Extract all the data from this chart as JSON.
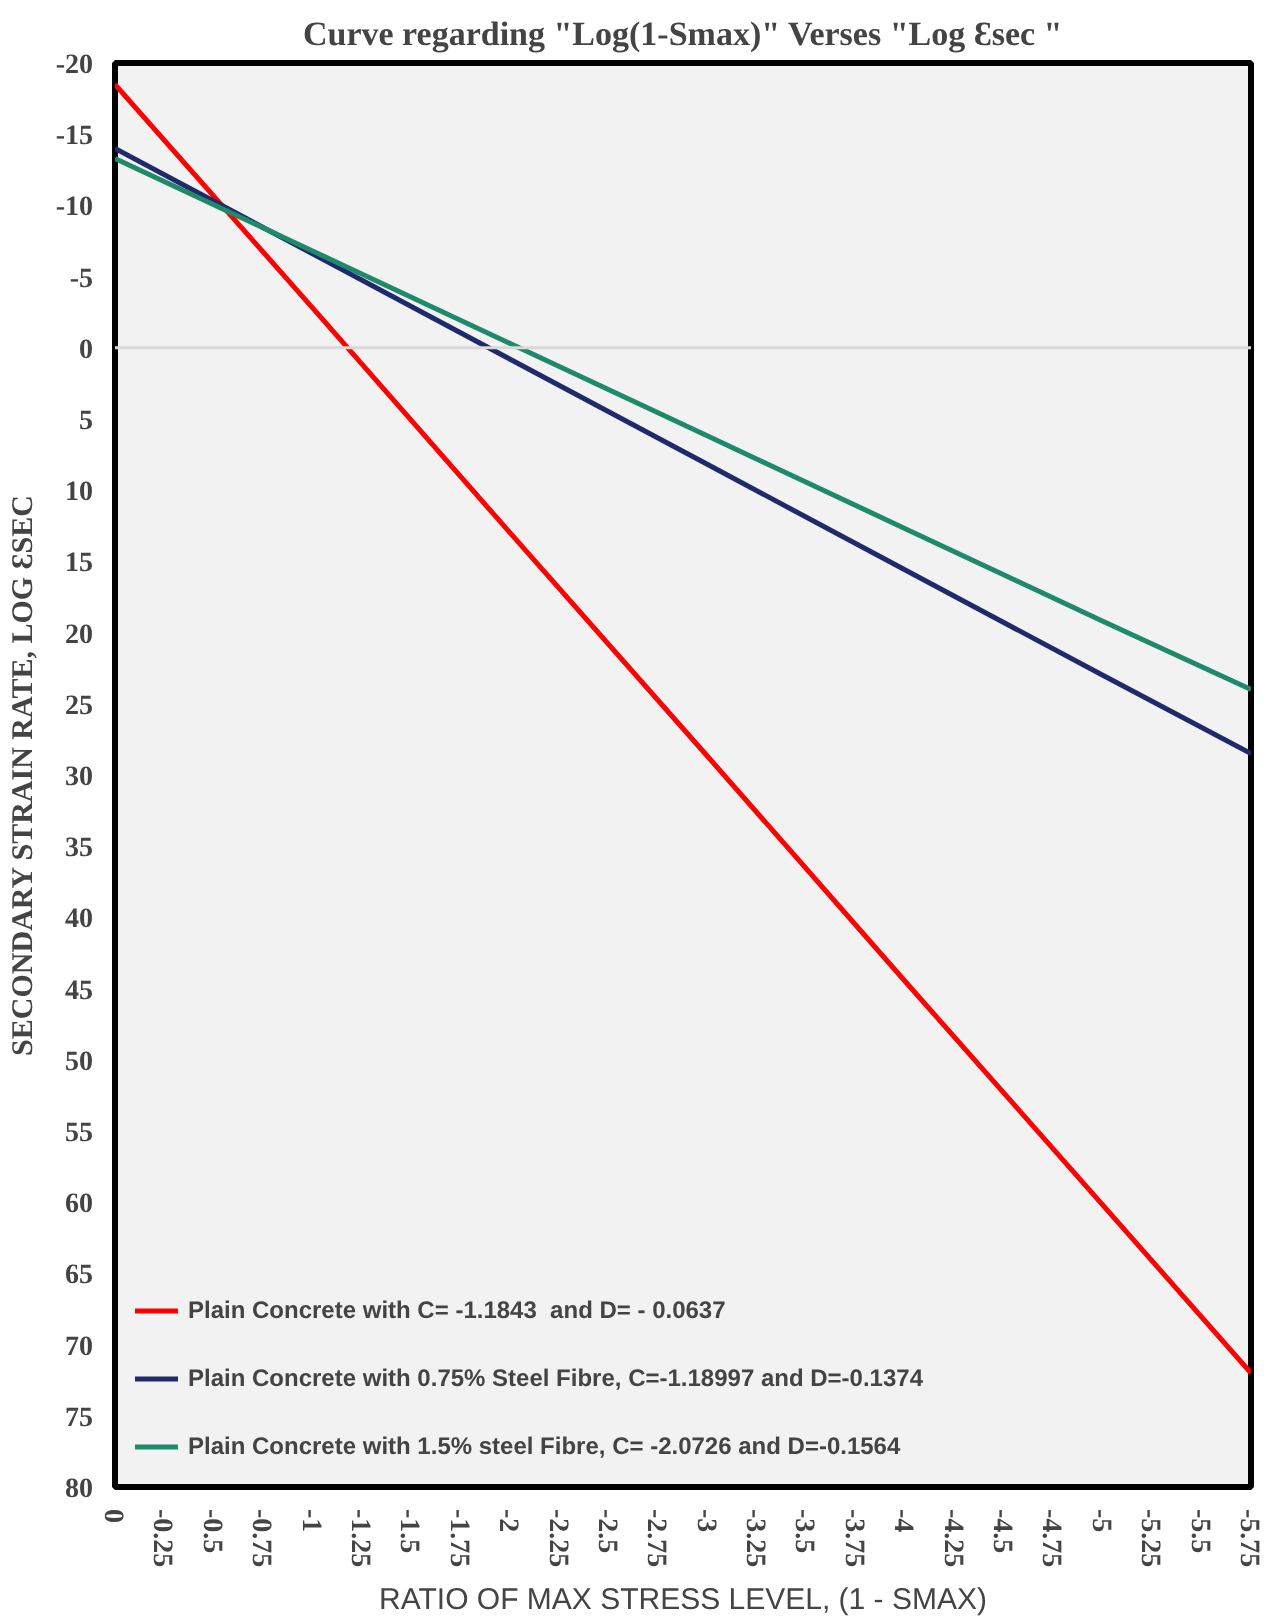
{
  "chart_data": {
    "type": "line",
    "title": "Curve regarding \"Log(1-Smax)\" Verses \"Log Ɛsec \"",
    "xlabel": "RATIO OF MAX STRESS LEVEL, (1 - SMAX)",
    "ylabel": "SECONDARY STRAIN RATE, LOG ƐSEC",
    "x": [
      0,
      -1,
      -2,
      -3,
      -4,
      -5,
      -5.75
    ],
    "series": [
      {
        "name": "Plain Concrete with C= -1.1843  and D= - 0.0637",
        "color": "#ff0000",
        "values": [
          -18.5,
          -2.8,
          13,
          28.7,
          44.5,
          60.2,
          72
        ]
      },
      {
        "name": "Plain Concrete with 0.75% Steel Fibre, C=-1.18997 and D=-0.1374",
        "color": "#1f2a6b",
        "values": [
          -14,
          -6.6,
          0.8,
          8.2,
          15.6,
          23,
          28.5
        ]
      },
      {
        "name": "Plain Concrete with 1.5% steel Fibre, C= -2.0726 and D=-0.1564",
        "color": "#1f8a6a",
        "values": [
          -13.3,
          -6.8,
          -0.3,
          6.2,
          12.7,
          19.2,
          24
        ]
      }
    ],
    "xlim": [
      0,
      -5.75
    ],
    "xticks": [
      0,
      -0.25,
      -0.5,
      -0.75,
      -1,
      -1.25,
      -1.5,
      -1.75,
      -2,
      -2.25,
      -2.5,
      -2.75,
      -3,
      -3.25,
      -3.5,
      -3.75,
      -4,
      -4.25,
      -4.5,
      -4.75,
      -5,
      -5.25,
      -5.5,
      -5.75
    ],
    "ylim": [
      80,
      -20
    ],
    "yticks": [
      -20,
      -15,
      -10,
      -5,
      0,
      5,
      10,
      15,
      20,
      25,
      30,
      35,
      40,
      45,
      50,
      55,
      60,
      65,
      70,
      75,
      80
    ],
    "ref_lines": [
      {
        "axis": "y",
        "value": 0,
        "color": "#d9d9d9"
      }
    ],
    "grid": false,
    "legend": "bottom left",
    "marker": "none",
    "line_style": "solid"
  }
}
